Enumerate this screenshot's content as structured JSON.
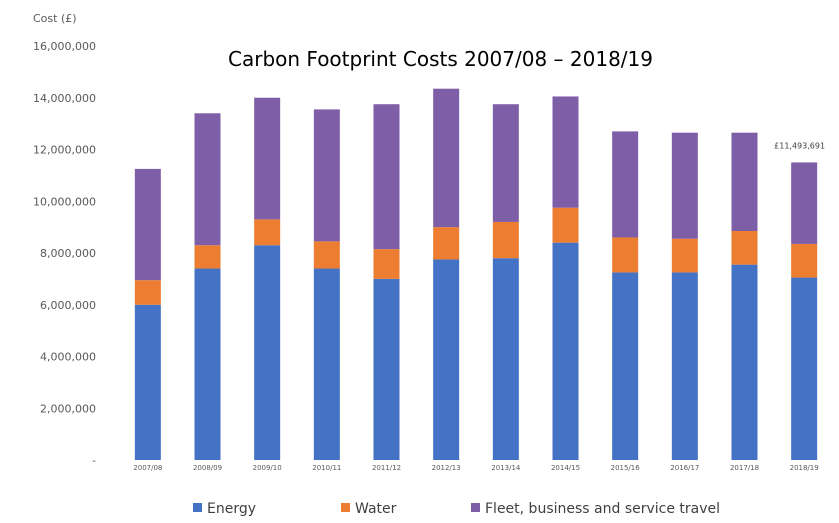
{
  "chart_data": {
    "type": "bar",
    "stacked": true,
    "title": "Carbon Footprint Costs 2007/08 – 2018/19",
    "xlabel": "",
    "ylabel": "Cost (£)",
    "ylim": [
      0,
      16000000
    ],
    "yticks": [
      {
        "value": 0,
        "label": "-"
      },
      {
        "value": 2000000,
        "label": "2,000,000"
      },
      {
        "value": 4000000,
        "label": "4,000,000"
      },
      {
        "value": 6000000,
        "label": "6,000,000"
      },
      {
        "value": 8000000,
        "label": "8,000,000"
      },
      {
        "value": 10000000,
        "label": "10,000,000"
      },
      {
        "value": 12000000,
        "label": "12,000,000"
      },
      {
        "value": 14000000,
        "label": "14,000,000"
      },
      {
        "value": 16000000,
        "label": "16,000,000"
      }
    ],
    "categories": [
      "2007/08",
      "2008/09",
      "2009/10",
      "2010/11",
      "2011/12",
      "2012/13",
      "2013/14",
      "2014/15",
      "2015/16",
      "2016/17",
      "2017/18",
      "2018/19"
    ],
    "series": [
      {
        "name": "Energy",
        "color": "#4472c4",
        "values": [
          6000000,
          7400000,
          8300000,
          7400000,
          7000000,
          7750000,
          7800000,
          8400000,
          7250000,
          7250000,
          7550000,
          7050000
        ]
      },
      {
        "name": "Water",
        "color": "#ed7d31",
        "values": [
          950000,
          900000,
          1000000,
          1050000,
          1150000,
          1250000,
          1400000,
          1350000,
          1350000,
          1300000,
          1300000,
          1300000
        ]
      },
      {
        "name": "Fleet, business and service travel",
        "color": "#7f5ea8",
        "values": [
          4300000,
          5100000,
          4700000,
          5100000,
          5600000,
          5350000,
          4550000,
          4300000,
          4100000,
          4100000,
          3800000,
          3150000
        ]
      }
    ],
    "grid": false,
    "legend_position": "bottom",
    "annotations": [
      {
        "category": "2018/19",
        "text": "£11,493,691"
      }
    ]
  }
}
